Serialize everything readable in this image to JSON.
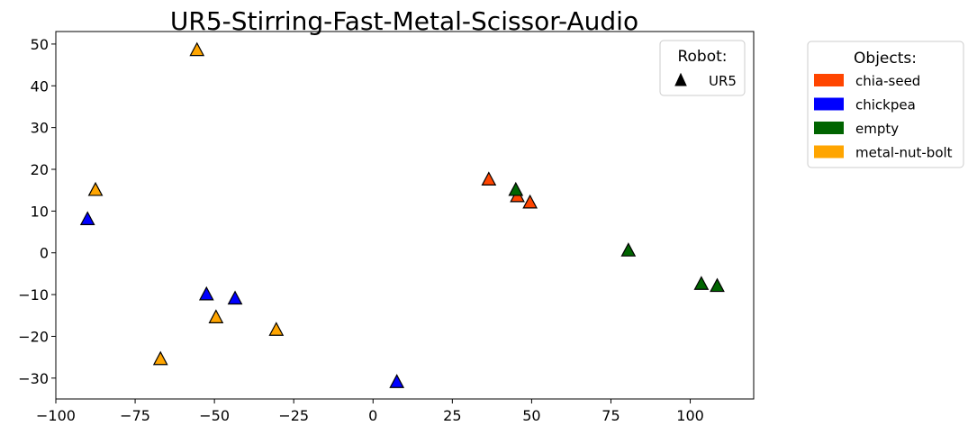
{
  "chart_data": {
    "type": "scatter",
    "title": "UR5-Stirring-Fast-Metal-Scissor-Audio",
    "xlabel": "",
    "ylabel": "",
    "xlim": [
      -100,
      120
    ],
    "ylim": [
      -35,
      53
    ],
    "xticks": [
      -100,
      -75,
      -50,
      -25,
      0,
      25,
      50,
      75,
      100
    ],
    "yticks": [
      -30,
      -20,
      -10,
      0,
      10,
      20,
      30,
      40,
      50
    ],
    "grid": false,
    "marker": "triangle",
    "robot_legend": {
      "title": "Robot:",
      "placement": "top-right-inside",
      "entries": [
        {
          "label": "UR5",
          "marker": "triangle",
          "color": "#000000"
        }
      ]
    },
    "object_legend": {
      "title": "Objects:",
      "placement": "outside-right",
      "entries": [
        {
          "label": "chia-seed",
          "color": "#FF4500"
        },
        {
          "label": "chickpea",
          "color": "#0000FF"
        },
        {
          "label": "empty",
          "color": "#006400"
        },
        {
          "label": "metal-nut-bolt",
          "color": "#FFA500"
        }
      ]
    },
    "series": [
      {
        "name": "chia-seed",
        "color": "#FF4500",
        "points": [
          {
            "x": 36.5,
            "y": 17.5
          },
          {
            "x": 45.5,
            "y": 13.5
          },
          {
            "x": 49.5,
            "y": 12
          }
        ]
      },
      {
        "name": "chickpea",
        "color": "#0000FF",
        "points": [
          {
            "x": -90,
            "y": 8
          },
          {
            "x": -52.5,
            "y": -10
          },
          {
            "x": -43.5,
            "y": -11
          },
          {
            "x": 7.5,
            "y": -31
          }
        ]
      },
      {
        "name": "empty",
        "color": "#006400",
        "points": [
          {
            "x": 45,
            "y": 15
          },
          {
            "x": 80.5,
            "y": 0.5
          },
          {
            "x": 103.5,
            "y": -7.5
          },
          {
            "x": 108.5,
            "y": -8
          }
        ]
      },
      {
        "name": "metal-nut-bolt",
        "color": "#FFA500",
        "points": [
          {
            "x": -55.5,
            "y": 48.5
          },
          {
            "x": -87.5,
            "y": 15
          },
          {
            "x": -49.5,
            "y": -15.5
          },
          {
            "x": -30.5,
            "y": -18.5
          },
          {
            "x": -67,
            "y": -25.5
          }
        ]
      }
    ]
  }
}
